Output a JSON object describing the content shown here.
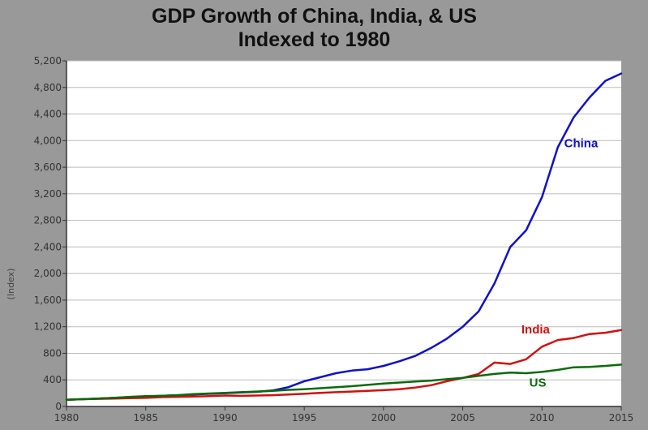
{
  "chart_data": {
    "type": "line",
    "title_lines": [
      "GDP Growth of China, India, & US",
      "Indexed to 1980"
    ],
    "xlabel": "",
    "ylabel": "(Index)",
    "xlim": [
      1980,
      2015
    ],
    "ylim": [
      0,
      5200
    ],
    "x_ticks": [
      1980,
      1985,
      1990,
      1995,
      2000,
      2005,
      2010,
      2015
    ],
    "y_ticks": [
      0,
      400,
      800,
      1200,
      1600,
      2000,
      2400,
      2800,
      3200,
      3600,
      4000,
      4400,
      4800,
      5200
    ],
    "y_tick_labels": [
      "0",
      "400",
      "800",
      "1,200",
      "1,600",
      "2,000",
      "2,400",
      "2,800",
      "3,200",
      "3,600",
      "4,000",
      "4,400",
      "4,800",
      "5,200"
    ],
    "grid": "horizontal",
    "legend": "inline labels",
    "series": [
      {
        "name": "China",
        "color": "#1010c8",
        "x": [
          1980,
          1981,
          1982,
          1983,
          1984,
          1985,
          1986,
          1987,
          1988,
          1989,
          1990,
          1991,
          1992,
          1993,
          1994,
          1995,
          1996,
          1997,
          1998,
          1999,
          2000,
          2001,
          2002,
          2003,
          2004,
          2005,
          2006,
          2007,
          2008,
          2009,
          2010,
          2011,
          2012,
          2013,
          2014,
          2015
        ],
        "values": [
          100,
          110,
          120,
          130,
          140,
          150,
          160,
          170,
          180,
          190,
          200,
          210,
          220,
          240,
          290,
          380,
          440,
          500,
          540,
          560,
          610,
          680,
          760,
          880,
          1020,
          1200,
          1430,
          1850,
          2400,
          2650,
          3150,
          3900,
          4350,
          4650,
          4900,
          5010
        ]
      },
      {
        "name": "India",
        "color": "#d01010",
        "x": [
          1980,
          1981,
          1982,
          1983,
          1984,
          1985,
          1986,
          1987,
          1988,
          1989,
          1990,
          1991,
          1992,
          1993,
          1994,
          1995,
          1996,
          1997,
          1998,
          1999,
          2000,
          2001,
          2002,
          2003,
          2004,
          2005,
          2006,
          2007,
          2008,
          2009,
          2010,
          2011,
          2012,
          2013,
          2014,
          2015
        ],
        "values": [
          100,
          110,
          115,
          120,
          125,
          130,
          140,
          145,
          150,
          155,
          165,
          160,
          165,
          170,
          180,
          190,
          205,
          215,
          225,
          235,
          245,
          260,
          285,
          320,
          380,
          430,
          490,
          660,
          640,
          710,
          900,
          1000,
          1030,
          1090,
          1110,
          1150
        ]
      },
      {
        "name": "US",
        "color": "#0a6a0a",
        "x": [
          1980,
          1981,
          1982,
          1983,
          1984,
          1985,
          1986,
          1987,
          1988,
          1989,
          1990,
          1991,
          1992,
          1993,
          1994,
          1995,
          1996,
          1997,
          1998,
          1999,
          2000,
          2001,
          2002,
          2003,
          2004,
          2005,
          2006,
          2007,
          2008,
          2009,
          2010,
          2011,
          2012,
          2013,
          2014,
          2015
        ],
        "values": [
          100,
          110,
          118,
          130,
          145,
          155,
          160,
          170,
          185,
          195,
          205,
          215,
          225,
          235,
          250,
          260,
          275,
          290,
          305,
          325,
          345,
          360,
          375,
          390,
          410,
          430,
          460,
          490,
          510,
          500,
          520,
          550,
          590,
          595,
          610,
          630
        ]
      }
    ],
    "series_labels": [
      {
        "name": "China",
        "text": "China"
      },
      {
        "name": "India",
        "text": "India"
      },
      {
        "name": "US",
        "text": "US"
      }
    ],
    "colors": {
      "background": "#999999",
      "plot_area": "#ffffff",
      "grid": "#bbbbbb"
    }
  }
}
